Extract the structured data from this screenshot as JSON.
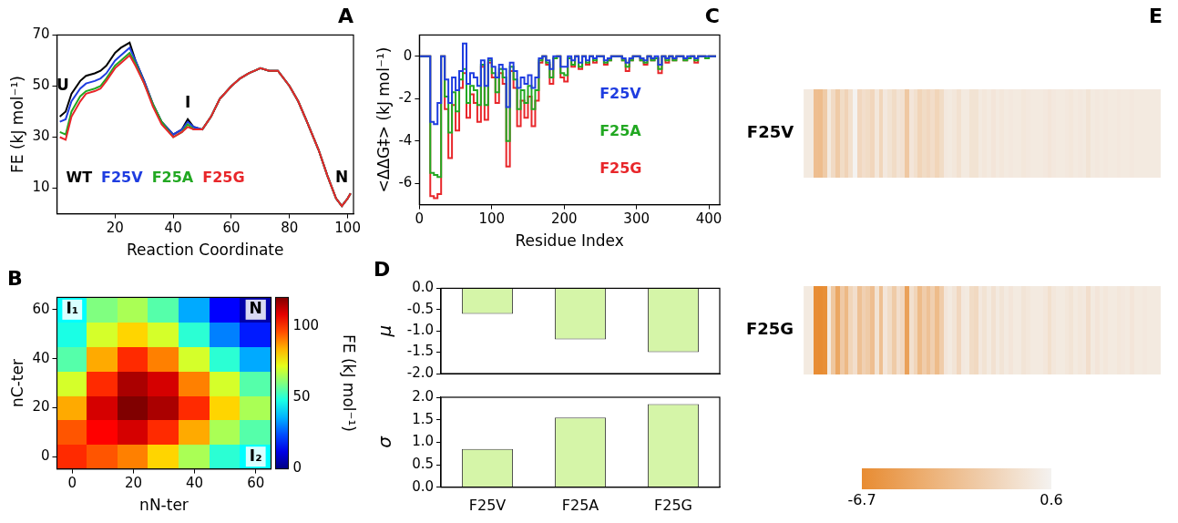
{
  "chart_data": [
    {
      "type": "line",
      "title": "A",
      "xlabel": "Reaction Coordinate",
      "ylabel": "FE (kJ mol⁻¹)",
      "x": [
        1,
        3,
        5,
        8,
        10,
        13,
        15,
        17,
        20,
        22,
        25,
        27,
        30,
        33,
        36,
        40,
        43,
        45,
        47,
        50,
        53,
        56,
        60,
        63,
        66,
        68,
        70,
        73,
        76,
        80,
        83,
        86,
        90,
        93,
        96,
        98,
        100,
        101
      ],
      "series": [
        {
          "name": "WT",
          "color": "#000000",
          "values": [
            38,
            40,
            47,
            52,
            54,
            55,
            56,
            58,
            63,
            65,
            67,
            60,
            52,
            43,
            36,
            31,
            33,
            37,
            34,
            33,
            38,
            45,
            50,
            53,
            55,
            56,
            57,
            56,
            56,
            50,
            44,
            36,
            25,
            15,
            6,
            3,
            6,
            8
          ]
        },
        {
          "name": "F25V",
          "color": "#1f3de0",
          "values": [
            36,
            37,
            44,
            49,
            51,
            52,
            53,
            55,
            60,
            62,
            65,
            60,
            52,
            43,
            36,
            31,
            33,
            36,
            34,
            33,
            38,
            45,
            50,
            53,
            55,
            56,
            57,
            56,
            56,
            50,
            44,
            36,
            25,
            15,
            6,
            3,
            6,
            8
          ]
        },
        {
          "name": "F25A",
          "color": "#22a822",
          "values": [
            32,
            31,
            40,
            46,
            48,
            49,
            50,
            53,
            58,
            60,
            63,
            59,
            51,
            43,
            36,
            30,
            32,
            35,
            33,
            33,
            38,
            45,
            50,
            53,
            55,
            56,
            57,
            56,
            56,
            50,
            44,
            36,
            25,
            15,
            6,
            3,
            6,
            8
          ]
        },
        {
          "name": "F25G",
          "color": "#e8262a",
          "values": [
            30,
            29,
            38,
            44,
            47,
            48,
            49,
            52,
            57,
            59,
            62,
            58,
            51,
            42,
            35,
            30,
            32,
            34,
            33,
            33,
            38,
            45,
            50,
            53,
            55,
            56,
            57,
            56,
            56,
            50,
            44,
            36,
            25,
            15,
            6,
            3,
            6,
            8
          ]
        }
      ],
      "xlim": [
        0,
        102
      ],
      "xticks": [
        20,
        40,
        60,
        80,
        100
      ],
      "ylim": [
        0,
        70
      ],
      "yticks": [
        10,
        30,
        50,
        70
      ],
      "grid": false,
      "legend": "lower left",
      "annotations": [
        {
          "text": "U",
          "x": 2,
          "y": 50
        },
        {
          "text": "I",
          "x": 45,
          "y": 43
        },
        {
          "text": "N",
          "x": 98,
          "y": 14
        }
      ]
    },
    {
      "type": "heatmap",
      "title": "B",
      "xlabel": "nN-ter",
      "ylabel": "nC-ter",
      "x": [
        0,
        10,
        20,
        30,
        40,
        50,
        60
      ],
      "y": [
        0,
        10,
        20,
        30,
        40,
        50,
        60
      ],
      "values": [
        [
          100,
          95,
          90,
          80,
          65,
          50,
          45
        ],
        [
          95,
          105,
          110,
          100,
          85,
          65,
          55
        ],
        [
          85,
          110,
          120,
          115,
          100,
          80,
          65
        ],
        [
          70,
          100,
          115,
          110,
          90,
          70,
          55
        ],
        [
          55,
          85,
          100,
          90,
          70,
          50,
          35
        ],
        [
          48,
          70,
          80,
          70,
          50,
          30,
          18
        ],
        [
          45,
          60,
          65,
          55,
          35,
          15,
          5
        ]
      ],
      "xlim": [
        -5,
        65
      ],
      "xticks": [
        0,
        20,
        40,
        60
      ],
      "ylim": [
        -5,
        65
      ],
      "yticks": [
        0,
        20,
        40,
        60
      ],
      "colorbar": {
        "label": "FE (kJ mol⁻¹)",
        "range": [
          0,
          120
        ],
        "ticks": [
          0,
          50,
          100
        ]
      },
      "annotations": [
        {
          "text": "N",
          "x": 60,
          "y": 60
        },
        {
          "text": "I₁",
          "x": 0,
          "y": 60
        },
        {
          "text": "I₂",
          "x": 60,
          "y": 0
        }
      ]
    },
    {
      "type": "line",
      "title": "C",
      "line_style": "steps",
      "xlabel": "Residue Index",
      "ylabel": "<ΔΔG‡> (kJ mol⁻¹)",
      "x": [
        0,
        5,
        10,
        15,
        20,
        25,
        30,
        35,
        40,
        45,
        50,
        55,
        60,
        65,
        70,
        75,
        80,
        85,
        90,
        95,
        100,
        105,
        110,
        115,
        120,
        125,
        130,
        135,
        140,
        145,
        150,
        155,
        160,
        165,
        170,
        175,
        180,
        185,
        190,
        195,
        200,
        205,
        210,
        215,
        220,
        225,
        230,
        235,
        240,
        245,
        250,
        255,
        260,
        265,
        270,
        275,
        280,
        285,
        290,
        295,
        300,
        305,
        310,
        315,
        320,
        325,
        330,
        335,
        340,
        345,
        350,
        355,
        360,
        365,
        370,
        375,
        380,
        385,
        390,
        395,
        400,
        405,
        410
      ],
      "series": [
        {
          "name": "F25V",
          "color": "#1f3de0",
          "values": [
            0,
            0,
            0,
            -3.1,
            -3.2,
            -2.2,
            0,
            -1.1,
            -2.2,
            -1.0,
            -1.6,
            -0.7,
            0.6,
            -1.3,
            -0.8,
            -1.0,
            -1.4,
            -0.2,
            -1.4,
            -0.1,
            -0.5,
            -1.0,
            -0.4,
            -0.6,
            -2.4,
            -0.3,
            -0.7,
            -1.5,
            -1.0,
            -1.3,
            -0.9,
            -1.5,
            -1.0,
            -0.1,
            0,
            -0.2,
            -0.6,
            0,
            0,
            -0.5,
            -0.5,
            0,
            -0.2,
            0,
            -0.3,
            0,
            -0.2,
            0,
            -0.1,
            0,
            0,
            -0.2,
            -0.1,
            0,
            0,
            0,
            -0.1,
            -0.3,
            -0.1,
            0,
            0,
            -0.1,
            -0.2,
            0,
            -0.1,
            0,
            -0.4,
            0,
            -0.1,
            0,
            -0.1,
            0,
            0,
            -0.1,
            0,
            0,
            -0.1,
            0,
            0,
            0,
            0,
            0,
            0
          ]
        },
        {
          "name": "F25A",
          "color": "#22a822",
          "values": [
            0,
            0,
            0,
            -5.5,
            -5.6,
            -5.7,
            0,
            -1.9,
            -3.6,
            -1.7,
            -2.6,
            -1.1,
            -0.6,
            -2.2,
            -1.4,
            -1.6,
            -2.3,
            -0.4,
            -2.3,
            -0.2,
            -0.8,
            -1.7,
            -0.6,
            -1.0,
            -4.0,
            -0.5,
            -1.1,
            -2.5,
            -1.6,
            -2.2,
            -1.4,
            -2.5,
            -1.6,
            -0.2,
            0,
            -0.3,
            -1.0,
            -0.1,
            0,
            -0.8,
            -0.9,
            -0.1,
            -0.4,
            0,
            -0.5,
            0,
            -0.3,
            0,
            -0.2,
            0,
            0,
            -0.3,
            -0.2,
            0,
            0,
            0,
            -0.2,
            -0.5,
            -0.2,
            0,
            0,
            -0.2,
            -0.3,
            0,
            -0.2,
            -0.1,
            -0.6,
            0,
            -0.2,
            0,
            -0.2,
            0,
            0,
            -0.2,
            -0.1,
            0,
            -0.2,
            0,
            0,
            -0.1,
            0,
            0,
            0
          ]
        },
        {
          "name": "F25G",
          "color": "#e8262a",
          "values": [
            0,
            0,
            0,
            -6.6,
            -6.7,
            -6.5,
            0,
            -2.5,
            -4.8,
            -2.3,
            -3.5,
            -1.5,
            -0.8,
            -2.9,
            -1.8,
            -2.2,
            -3.1,
            -0.5,
            -3.0,
            -0.3,
            -1.0,
            -2.2,
            -0.8,
            -1.3,
            -5.2,
            -0.7,
            -1.5,
            -3.3,
            -2.1,
            -2.9,
            -1.9,
            -3.3,
            -2.1,
            -0.3,
            0,
            -0.4,
            -1.3,
            -0.1,
            0,
            -1.0,
            -1.2,
            -0.1,
            -0.5,
            0,
            -0.6,
            0,
            -0.4,
            0,
            -0.3,
            0,
            0,
            -0.4,
            -0.2,
            0,
            0,
            0,
            -0.2,
            -0.7,
            -0.2,
            0,
            0,
            -0.2,
            -0.4,
            0,
            -0.2,
            -0.1,
            -0.8,
            0,
            -0.3,
            0,
            -0.2,
            0,
            0,
            -0.2,
            -0.1,
            0,
            -0.3,
            0,
            0,
            -0.1,
            0,
            0,
            0
          ]
        }
      ],
      "xlim": [
        0,
        415
      ],
      "xticks": [
        0,
        100,
        200,
        300,
        400
      ],
      "ylim": [
        -7,
        1
      ],
      "yticks": [
        -6,
        -4,
        -2,
        0
      ],
      "grid": false,
      "legend": "center right"
    },
    {
      "type": "bar",
      "title": "D",
      "ylabel": "μ",
      "categories": [
        "F25V",
        "F25A",
        "F25G"
      ],
      "values": [
        -0.6,
        -1.2,
        -1.5
      ],
      "color": "#d5f5a8",
      "ylim": [
        -2,
        0
      ],
      "yticks": [
        {
          "value": -2,
          "label": "-2.0"
        },
        -1.5,
        {
          "value": -1,
          "label": "-1.0"
        },
        -0.5,
        {
          "value": 0,
          "label": "0.0"
        }
      ],
      "grid": false,
      "tick_labels": "y"
    },
    {
      "type": "bar",
      "ylabel": "σ",
      "categories": [
        "F25V",
        "F25A",
        "F25G"
      ],
      "values": [
        0.85,
        1.55,
        1.85
      ],
      "color": "#d5f5a8",
      "ylim": [
        0,
        2
      ],
      "yticks": [
        {
          "value": 0,
          "label": "0.0"
        },
        0.5,
        {
          "value": 1,
          "label": "1.0"
        },
        1.5,
        {
          "value": 2,
          "label": "2.0"
        }
      ],
      "grid": false
    },
    {
      "type": "heatmap",
      "title": "E",
      "categories": [
        "F25V",
        "F25G"
      ],
      "colorbar": {
        "range": [
          -6.7,
          0.6
        ],
        "ticks": [
          -6.7,
          0.6
        ]
      },
      "tick_labels": "y"
    }
  ]
}
